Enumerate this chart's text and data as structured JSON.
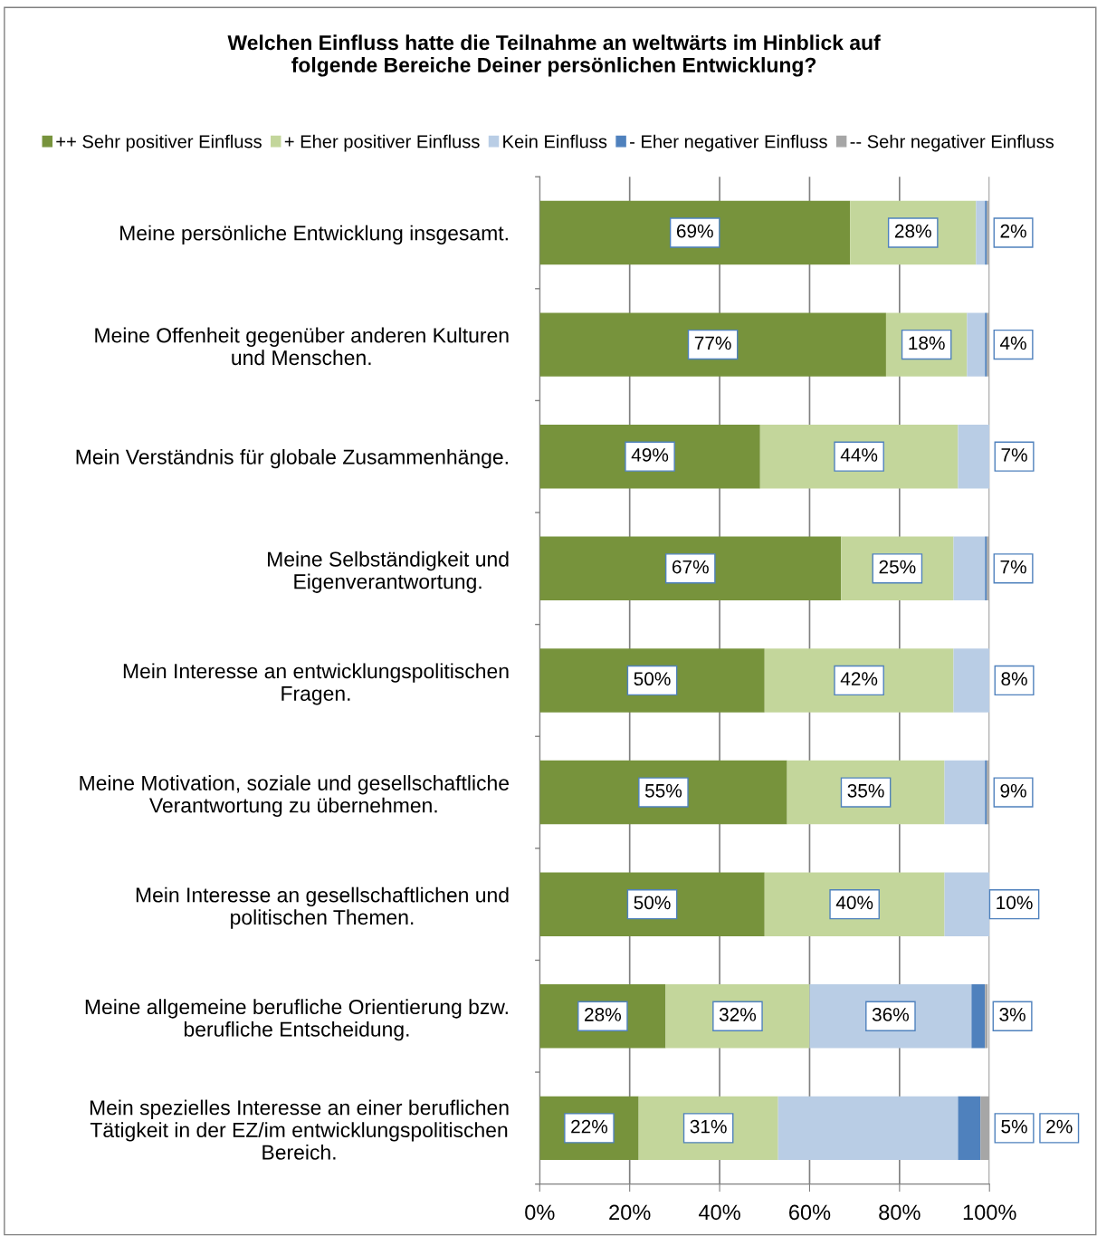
{
  "chart_data": {
    "type": "bar",
    "orientation": "horizontal",
    "stacked": true,
    "title": "Welchen Einfluss hatte die Teilnahme an weltwärts im Hinblick auf\nfolgende Bereiche Deiner persönlichen Entwicklung?",
    "categories": [
      "Meine persönliche Entwicklung insgesamt.",
      "Meine Offenheit gegenüber anderen Kulturen\nund Menschen.",
      "Mein Verständnis für globale Zusammenhänge.",
      "Meine Selbständigkeit und\nEigenverantwortung.",
      "Mein Interesse an entwicklungspolitischen\nFragen.",
      "Meine Motivation, soziale und gesellschaftliche\nVerantwortung zu übernehmen.",
      "Mein Interesse an gesellschaftlichen und\npolitischen Themen.",
      "Meine allgemeine berufliche Orientierung bzw.\nberufliche Entscheidung.",
      "Mein spezielles Interesse an einer beruflichen\nTätigkeit in der EZ/im entwicklungspolitischen\nBereich."
    ],
    "series": [
      {
        "name": "++ Sehr positiver Einfluss",
        "color": "#77933c",
        "values": [
          69,
          77,
          49,
          67,
          50,
          55,
          50,
          28,
          22
        ],
        "value_labels": [
          "69%",
          "77%",
          "49%",
          "67%",
          "50%",
          "55%",
          "50%",
          "28%",
          "22%"
        ]
      },
      {
        "name": "+ Eher positiver Einfluss",
        "color": "#c3d69b",
        "values": [
          28,
          18,
          44,
          25,
          42,
          35,
          40,
          32,
          31
        ],
        "value_labels": [
          "28%",
          "18%",
          "44%",
          "25%",
          "42%",
          "35%",
          "40%",
          "32%",
          "31%"
        ]
      },
      {
        "name": "Kein Einfluss",
        "color": "#b9cde5",
        "values": [
          2,
          4,
          7,
          7,
          8,
          9,
          10,
          36,
          40
        ],
        "value_labels": [
          "2%",
          "4%",
          "7%",
          "7%",
          "8%",
          "9%",
          "10%",
          "36%",
          null
        ]
      },
      {
        "name": "- Eher negativer Einfluss",
        "color": "#4f81bd",
        "values": [
          0.4,
          0.4,
          0,
          0.4,
          0,
          0.4,
          0,
          3,
          5
        ],
        "value_labels": [
          null,
          null,
          null,
          null,
          null,
          null,
          null,
          "3%",
          "5%"
        ]
      },
      {
        "name": "-- Sehr negativer Einfluss",
        "color": "#a6a6a6",
        "values": [
          0.4,
          0.4,
          0,
          0.4,
          0,
          0.4,
          0,
          0.6,
          2
        ],
        "value_labels": [
          null,
          null,
          null,
          null,
          null,
          null,
          null,
          null,
          "2%"
        ]
      }
    ],
    "xlim": [
      0,
      100
    ],
    "xticks": [
      {
        "value": 0,
        "label": "0%"
      },
      {
        "value": 20,
        "label": "20%"
      },
      {
        "value": 40,
        "label": "40%"
      },
      {
        "value": 60,
        "label": "60%"
      },
      {
        "value": 80,
        "label": "80%"
      },
      {
        "value": 100,
        "label": "100%"
      }
    ],
    "grid": "x",
    "legend": "top"
  }
}
